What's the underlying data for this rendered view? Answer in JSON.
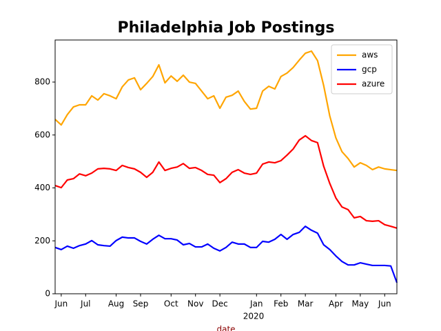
{
  "chart_data": {
    "type": "line",
    "title": "Philadelphia Job Postings",
    "x_label": "date",
    "x_label_color": "#8b0000",
    "x_sublabel": "2020",
    "categories": [
      null,
      "Jun",
      null,
      null,
      null,
      "Jul",
      null,
      null,
      null,
      null,
      "Aug",
      null,
      null,
      null,
      "Sep",
      null,
      null,
      null,
      null,
      "Oct",
      null,
      null,
      null,
      "Nov",
      null,
      null,
      null,
      "Dec",
      null,
      null,
      null,
      null,
      null,
      "Jan",
      null,
      null,
      null,
      "Feb",
      null,
      null,
      null,
      "Mar",
      null,
      null,
      null,
      null,
      "Apr",
      null,
      null,
      null,
      "May",
      null,
      null,
      null,
      "Jun",
      null,
      null
    ],
    "series": [
      {
        "name": "aws",
        "color": "#ffa500",
        "values": [
          659,
          638,
          677,
          706,
          714,
          714,
          748,
          732,
          756,
          748,
          737,
          782,
          808,
          816,
          771,
          795,
          821,
          865,
          797,
          823,
          803,
          826,
          800,
          795,
          766,
          737,
          748,
          701,
          743,
          750,
          766,
          727,
          698,
          701,
          766,
          784,
          774,
          821,
          834,
          855,
          883,
          909,
          917,
          881,
          787,
          672,
          589,
          537,
          511,
          479,
          495,
          485,
          469,
          479,
          472,
          469,
          466
        ]
      },
      {
        "name": "gcp",
        "color": "#0000ff",
        "values": [
          175,
          167,
          180,
          172,
          182,
          188,
          201,
          185,
          182,
          180,
          201,
          214,
          211,
          211,
          198,
          188,
          206,
          221,
          208,
          208,
          203,
          185,
          190,
          177,
          177,
          188,
          172,
          162,
          175,
          195,
          188,
          188,
          175,
          175,
          198,
          195,
          206,
          224,
          206,
          224,
          232,
          255,
          240,
          229,
          185,
          167,
          143,
          122,
          109,
          109,
          117,
          112,
          107,
          107,
          107,
          105,
          42
        ]
      },
      {
        "name": "azure",
        "color": "#ff0000",
        "values": [
          409,
          401,
          430,
          435,
          453,
          446,
          456,
          472,
          474,
          472,
          466,
          485,
          477,
          472,
          459,
          440,
          459,
          498,
          466,
          474,
          479,
          492,
          474,
          477,
          466,
          451,
          448,
          420,
          435,
          459,
          469,
          456,
          451,
          456,
          490,
          498,
          495,
          503,
          524,
          547,
          581,
          597,
          579,
          571,
          482,
          417,
          362,
          328,
          318,
          287,
          292,
          276,
          274,
          276,
          261,
          255,
          248
        ]
      }
    ],
    "ylim": [
      0,
      959
    ],
    "yticks": [
      0,
      200,
      400,
      600,
      800
    ],
    "grid": false,
    "legend": "upper right"
  }
}
